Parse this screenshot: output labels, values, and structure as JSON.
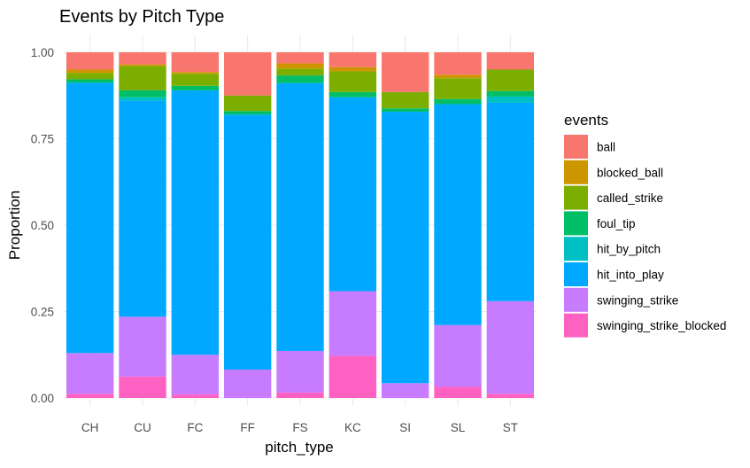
{
  "chart_data": {
    "type": "bar",
    "stacked": true,
    "title": "Events by Pitch Type",
    "xlabel": "pitch_type",
    "ylabel": "Proportion",
    "ylim": [
      0,
      1
    ],
    "yticks": [
      0,
      0.25,
      0.5,
      0.75,
      1
    ],
    "ytick_labels": [
      "0.00",
      "0.25",
      "0.50",
      "0.75",
      "1.00"
    ],
    "grid": true,
    "legend_title": "events",
    "legend_position": "right",
    "categories": [
      "CH",
      "CU",
      "FC",
      "FF",
      "FS",
      "KC",
      "SI",
      "SL",
      "ST"
    ],
    "series": [
      {
        "name": "swinging_strike_blocked",
        "color": "#FF61C3",
        "values": [
          0.012,
          0.062,
          0.01,
          0.0,
          0.016,
          0.122,
          0.0,
          0.032,
          0.012
        ]
      },
      {
        "name": "swinging_strike",
        "color": "#C77CFF",
        "values": [
          0.118,
          0.173,
          0.115,
          0.082,
          0.12,
          0.187,
          0.043,
          0.179,
          0.268
        ]
      },
      {
        "name": "hit_into_play",
        "color": "#00A9FF",
        "values": [
          0.782,
          0.625,
          0.765,
          0.738,
          0.775,
          0.561,
          0.785,
          0.639,
          0.574
        ]
      },
      {
        "name": "hit_by_pitch",
        "color": "#00BFC4",
        "values": [
          0.0,
          0.01,
          0.0,
          0.0,
          0.0,
          0.0,
          0.0,
          0.0,
          0.018
        ]
      },
      {
        "name": "foul_tip",
        "color": "#00BE67",
        "values": [
          0.01,
          0.02,
          0.013,
          0.01,
          0.022,
          0.015,
          0.01,
          0.015,
          0.016
        ]
      },
      {
        "name": "called_strike",
        "color": "#7CAE00",
        "values": [
          0.018,
          0.07,
          0.035,
          0.045,
          0.02,
          0.06,
          0.047,
          0.06,
          0.062
        ]
      },
      {
        "name": "blocked_ball",
        "color": "#CD9600",
        "values": [
          0.01,
          0.005,
          0.005,
          0.0,
          0.015,
          0.012,
          0.0,
          0.01,
          0.0
        ]
      },
      {
        "name": "ball",
        "color": "#F8766D",
        "values": [
          0.05,
          0.035,
          0.057,
          0.125,
          0.032,
          0.043,
          0.115,
          0.065,
          0.05
        ]
      }
    ],
    "legend_order": [
      "ball",
      "blocked_ball",
      "called_strike",
      "foul_tip",
      "hit_by_pitch",
      "hit_into_play",
      "swinging_strike",
      "swinging_strike_blocked"
    ]
  }
}
